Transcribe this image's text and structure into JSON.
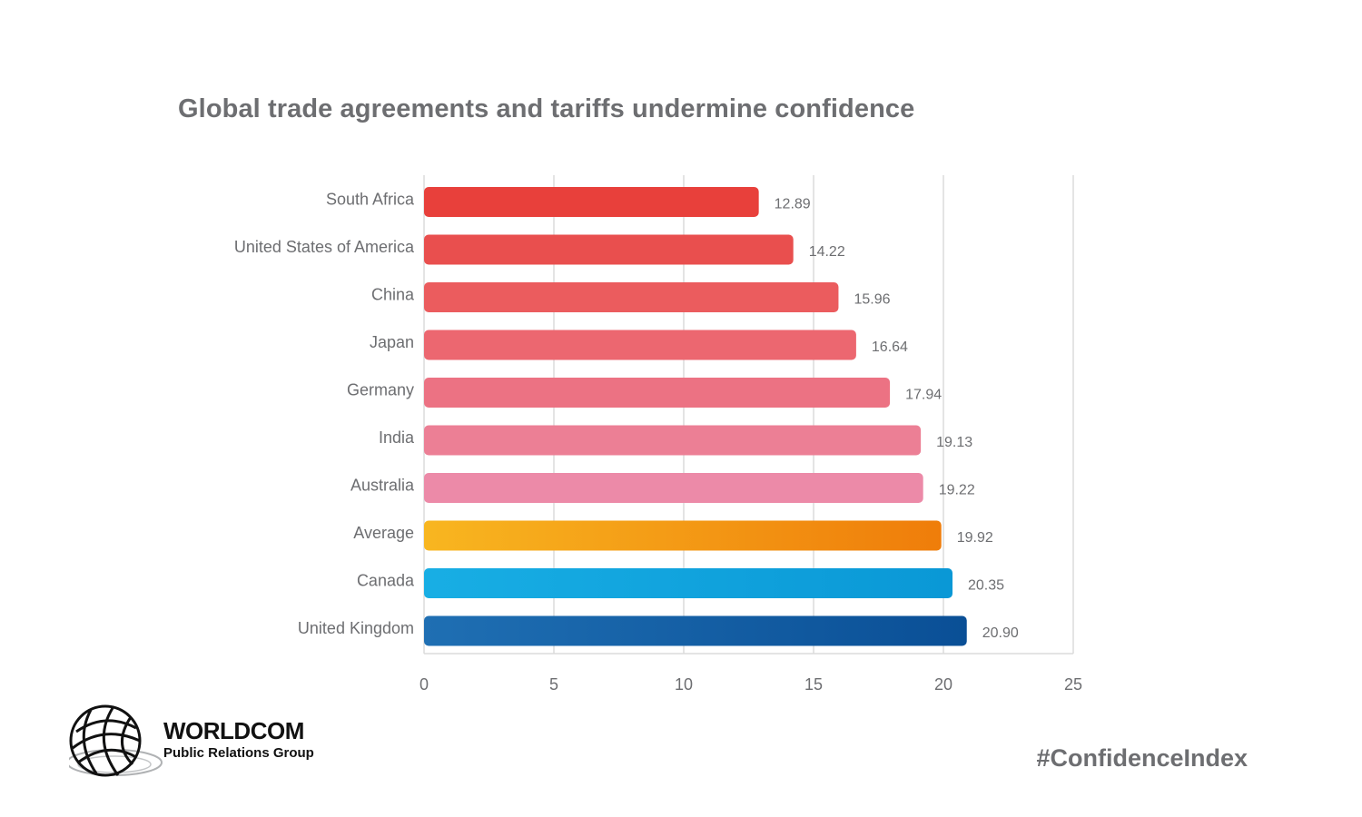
{
  "chart_data": {
    "type": "bar",
    "orientation": "horizontal",
    "title": "Global trade agreements and tariffs undermine confidence",
    "xlabel": "",
    "ylabel": "",
    "xlim": [
      0,
      25
    ],
    "xticks": [
      0,
      5,
      10,
      15,
      20,
      25
    ],
    "grid": "vertical",
    "categories": [
      "South Africa",
      "United States of America",
      "China",
      "Japan",
      "Germany",
      "India",
      "Australia",
      "Average",
      "Canada",
      "United Kingdom"
    ],
    "values": [
      12.89,
      14.22,
      15.96,
      16.64,
      17.94,
      19.13,
      19.22,
      19.92,
      20.35,
      20.9
    ],
    "value_labels": [
      "12.89",
      "14.22",
      "15.96",
      "16.64",
      "17.94",
      "19.13",
      "19.22",
      "19.92",
      "20.35",
      "20.90"
    ],
    "colors": [
      [
        "#e8403b",
        "#e8403b"
      ],
      [
        "#e94f4e",
        "#e94f4e"
      ],
      [
        "#eb5c5e",
        "#eb5c5e"
      ],
      [
        "#ec6770",
        "#ec6770"
      ],
      [
        "#ec7283",
        "#ec7283"
      ],
      [
        "#ec7f95",
        "#ec7f95"
      ],
      [
        "#ec8aa8",
        "#ec8aa8"
      ],
      [
        "#f8b620",
        "#ef7d0a"
      ],
      [
        "#18aee4",
        "#0a98d6"
      ],
      [
        "#1f6fb3",
        "#0a4f96"
      ]
    ]
  },
  "footer": {
    "logo_name": "WORLDCOM",
    "logo_subtitle": "Public Relations Group",
    "hashtag": "#ConfidenceIndex"
  }
}
